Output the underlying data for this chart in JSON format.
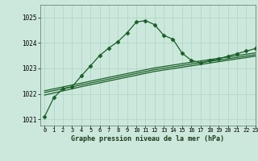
{
  "xlabel": "Graphe pression niveau de la mer (hPa)",
  "background_color": "#cce8dc",
  "grid_color": "#aad4c4",
  "line_color": "#1a5e28",
  "ylim": [
    1020.75,
    1025.5
  ],
  "xlim": [
    -0.5,
    23
  ],
  "yticks": [
    1021,
    1022,
    1023,
    1024,
    1025
  ],
  "xticks": [
    0,
    1,
    2,
    3,
    4,
    5,
    6,
    7,
    8,
    9,
    10,
    11,
    12,
    13,
    14,
    15,
    16,
    17,
    18,
    19,
    20,
    21,
    22,
    23
  ],
  "main_line": [
    [
      0,
      1021.1
    ],
    [
      1,
      1021.85
    ],
    [
      2,
      1022.2
    ],
    [
      3,
      1022.28
    ],
    [
      4,
      1022.7
    ],
    [
      5,
      1023.1
    ],
    [
      6,
      1023.5
    ],
    [
      7,
      1023.8
    ],
    [
      8,
      1024.05
    ],
    [
      9,
      1024.4
    ],
    [
      10,
      1024.82
    ],
    [
      11,
      1024.88
    ],
    [
      12,
      1024.72
    ],
    [
      13,
      1024.3
    ],
    [
      14,
      1024.15
    ],
    [
      15,
      1023.6
    ],
    [
      16,
      1023.32
    ],
    [
      17,
      1023.22
    ],
    [
      18,
      1023.3
    ],
    [
      19,
      1023.38
    ],
    [
      20,
      1023.48
    ],
    [
      21,
      1023.58
    ],
    [
      22,
      1023.68
    ],
    [
      23,
      1023.78
    ]
  ],
  "band_lines": [
    [
      [
        0,
        1021.95
      ],
      [
        4,
        1022.28
      ],
      [
        8,
        1022.58
      ],
      [
        12,
        1022.88
      ],
      [
        16,
        1023.1
      ],
      [
        20,
        1023.32
      ],
      [
        23,
        1023.48
      ]
    ],
    [
      [
        0,
        1022.05
      ],
      [
        4,
        1022.35
      ],
      [
        8,
        1022.65
      ],
      [
        12,
        1022.95
      ],
      [
        16,
        1023.17
      ],
      [
        20,
        1023.38
      ],
      [
        23,
        1023.54
      ]
    ],
    [
      [
        0,
        1022.12
      ],
      [
        4,
        1022.42
      ],
      [
        8,
        1022.72
      ],
      [
        12,
        1023.02
      ],
      [
        16,
        1023.24
      ],
      [
        20,
        1023.45
      ],
      [
        23,
        1023.61
      ]
    ]
  ]
}
